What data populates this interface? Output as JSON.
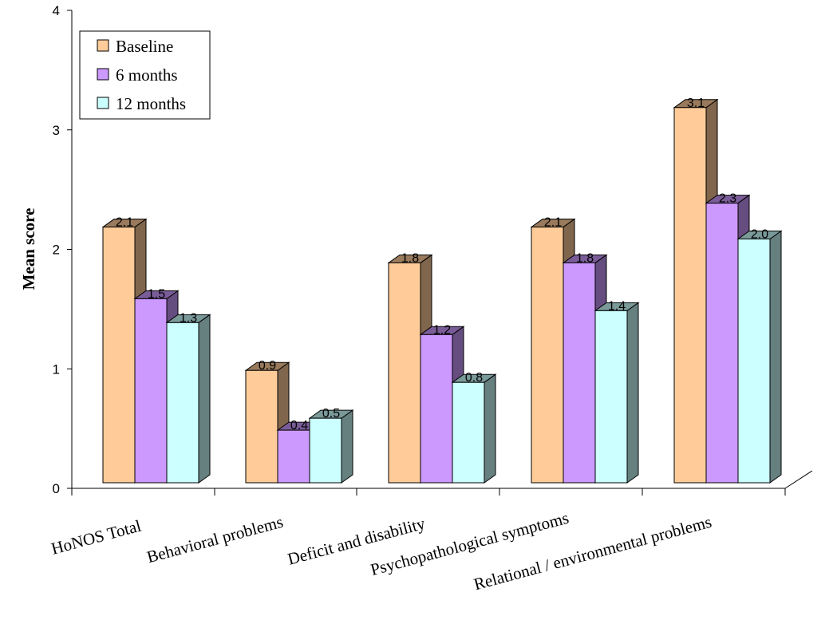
{
  "chart_data": {
    "type": "bar",
    "title": "",
    "xlabel": "",
    "ylabel": "Mean score",
    "ylim": [
      0,
      4
    ],
    "yticks": [
      "0",
      "1",
      "2",
      "3",
      "4"
    ],
    "categories": [
      "HoNOS Total",
      "Behavioral problems",
      "Deficit and disability",
      "Psychopathological symptoms",
      "Relational / environmental problems"
    ],
    "series": [
      {
        "name": "Baseline",
        "color": "#ffcc99",
        "values": [
          2.14,
          0.94,
          1.84,
          2.14,
          3.14
        ],
        "labels": [
          "2.1",
          "0.9",
          "1.8",
          "2.1",
          "3.1"
        ]
      },
      {
        "name": "6 months",
        "color": "#cc99ff",
        "values": [
          1.54,
          0.44,
          1.24,
          1.84,
          2.34
        ],
        "labels": [
          "1.5",
          "0.4",
          "1.2",
          "1.8",
          "2.3"
        ]
      },
      {
        "name": "12 months",
        "color": "#ccffff",
        "values": [
          1.34,
          0.54,
          0.84,
          1.44,
          2.04
        ],
        "labels": [
          "1.3",
          "0.5",
          "0.8",
          "1.4",
          "2.0"
        ]
      }
    ],
    "legend_position": "top-left",
    "grid": false,
    "style": "3d-bar"
  }
}
